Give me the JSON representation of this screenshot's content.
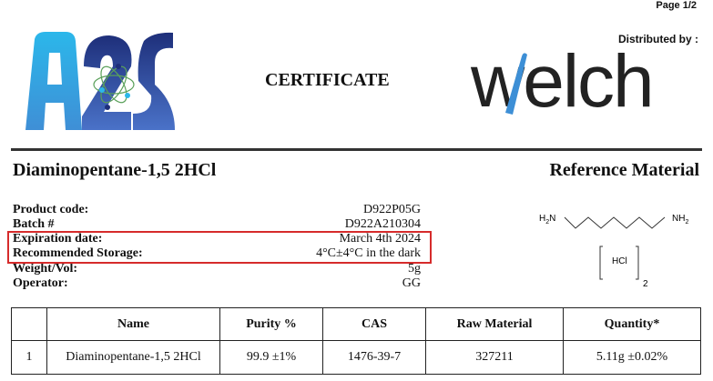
{
  "header": {
    "page": "Page 1/2",
    "distributed_by": "Distributed by :",
    "title": "CERTIFICATE",
    "logo_left": "A2S",
    "logo_right": "welch"
  },
  "product": {
    "name": "Diaminopentane-1,5 2HCl",
    "type": "Reference Material"
  },
  "info": [
    {
      "label": "Product code:",
      "value": "D922P05G"
    },
    {
      "label": "Batch #",
      "value": "D922A210304"
    },
    {
      "label": "Expiration date:",
      "value": "March 4th 2024"
    },
    {
      "label": "Recommended Storage:",
      "value": "4°C±4°C in the dark"
    },
    {
      "label": "Weight/Vol:",
      "value": "5g"
    },
    {
      "label": "Operator:",
      "value": "GG"
    }
  ],
  "structure": {
    "left": "H2N",
    "right": "NH2",
    "salt": "HCl",
    "count": "2"
  },
  "table": {
    "headers": [
      "",
      "Name",
      "Purity %",
      "CAS",
      "Raw Material",
      "Quantity*"
    ],
    "rows": [
      [
        "1",
        "Diaminopentane-1,5 2HCl",
        "99.9 ±1%",
        "1476-39-7",
        "327211",
        "5.11g  ±0.02%"
      ]
    ]
  },
  "highlight_color": "#d62b2b"
}
